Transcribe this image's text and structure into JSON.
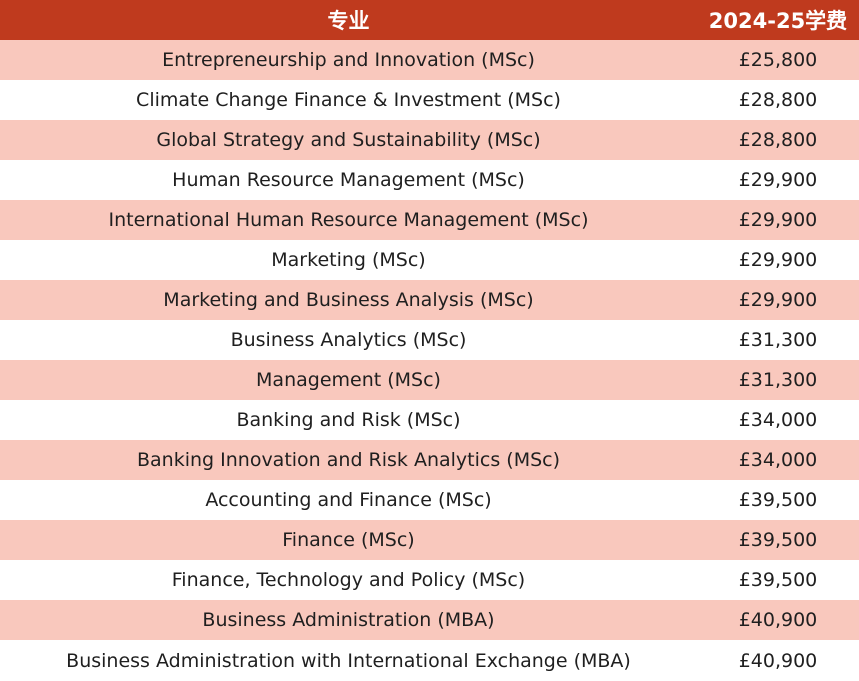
{
  "table": {
    "headers": [
      "专业",
      "2024-25学费"
    ],
    "rows": [
      {
        "program": "Entrepreneurship and Innovation (MSc)",
        "fee": "£25,800"
      },
      {
        "program": "Climate Change Finance & Investment (MSc)",
        "fee": "£28,800"
      },
      {
        "program": "Global Strategy and Sustainability (MSc)",
        "fee": "£28,800"
      },
      {
        "program": "Human Resource Management (MSc)",
        "fee": "£29,900"
      },
      {
        "program": "International Human Resource Management (MSc)",
        "fee": "£29,900"
      },
      {
        "program": "Marketing (MSc)",
        "fee": "£29,900"
      },
      {
        "program": "Marketing and Business Analysis (MSc)",
        "fee": "£29,900"
      },
      {
        "program": "Business Analytics (MSc)",
        "fee": "£31,300"
      },
      {
        "program": "Management (MSc)",
        "fee": "£31,300"
      },
      {
        "program": "Banking and Risk (MSc)",
        "fee": "£34,000"
      },
      {
        "program": "Banking Innovation and Risk Analytics (MSc)",
        "fee": "£34,000"
      },
      {
        "program": "Accounting and Finance (MSc)",
        "fee": "£39,500"
      },
      {
        "program": "Finance (MSc)",
        "fee": "£39,500"
      },
      {
        "program": "Finance, Technology and Policy (MSc)",
        "fee": "£39,500"
      },
      {
        "program": "Business Administration (MBA)",
        "fee": "£40,900"
      },
      {
        "program": "Business Administration with International Exchange (MBA)",
        "fee": "£40,900"
      }
    ]
  },
  "colors": {
    "header_bg": "#bf3a1e",
    "stripe": "#f9c8bd",
    "row_bg": "#ffffff"
  }
}
